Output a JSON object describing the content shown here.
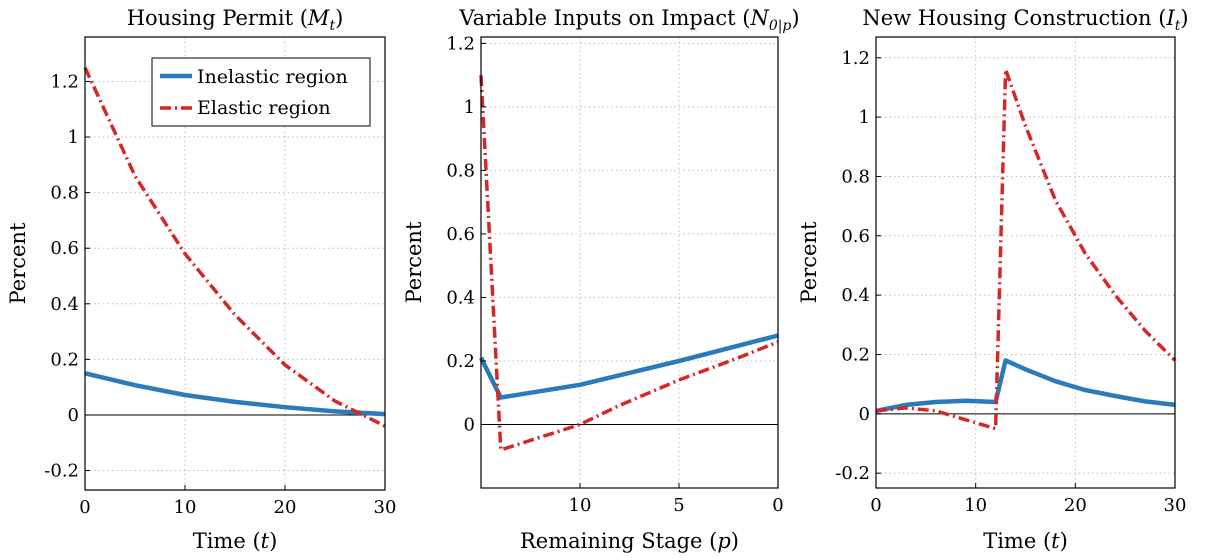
{
  "chart_data": [
    {
      "type": "line",
      "title": "Housing Permit (M_t)",
      "title_main": "Housing Permit (",
      "title_sym": "M",
      "title_sub": "t",
      "title_end": ")",
      "xlabel_main": "Time (",
      "xlabel_sym": "t",
      "xlabel_end": ")",
      "ylabel": "Percent",
      "xlim": [
        0,
        30
      ],
      "ylim": [
        -0.27,
        1.36
      ],
      "xticks": [
        0,
        10,
        20,
        30
      ],
      "xtick_labels": [
        "0",
        "10",
        "20",
        "30"
      ],
      "yticks": [
        -0.2,
        0,
        0.2,
        0.4,
        0.6,
        0.8,
        1,
        1.2
      ],
      "ytick_labels": [
        "-0.2",
        "0",
        "0.2",
        "0.4",
        "0.6",
        "0.8",
        "1",
        "1.2"
      ],
      "grid": true,
      "legend_position": "top-right",
      "series": [
        {
          "name": "Inelastic region",
          "color": "#2b7bba",
          "dash": "solid",
          "x": [
            0,
            5,
            10,
            15,
            20,
            25,
            30
          ],
          "y": [
            0.15,
            0.107,
            0.072,
            0.047,
            0.028,
            0.013,
            0.003
          ]
        },
        {
          "name": "Elastic region",
          "color": "#d62728",
          "dash": "dashdot",
          "x": [
            0,
            5,
            10,
            15,
            20,
            25,
            30
          ],
          "y": [
            1.25,
            0.86,
            0.58,
            0.36,
            0.18,
            0.05,
            -0.04
          ]
        }
      ]
    },
    {
      "type": "line",
      "title": "Variable Inputs on Impact (N_0|p)",
      "title_main": "Variable Inputs on Impact (",
      "title_sym": "N",
      "title_sub": "0|p",
      "title_end": ")",
      "xlabel_main": "Remaining Stage (",
      "xlabel_sym": "p",
      "xlabel_end": ")",
      "ylabel": "Percent",
      "xlim": [
        15,
        0
      ],
      "ylim": [
        -0.2,
        1.22
      ],
      "xticks": [
        10,
        5,
        0
      ],
      "xtick_labels": [
        "10",
        "5",
        "0"
      ],
      "yticks": [
        0,
        0.2,
        0.4,
        0.6,
        0.8,
        1,
        1.2
      ],
      "ytick_labels": [
        "0",
        "0.2",
        "0.4",
        "0.6",
        "0.8",
        "1",
        "1.2"
      ],
      "grid": true,
      "series": [
        {
          "name": "Inelastic region",
          "color": "#2b7bba",
          "dash": "solid",
          "x": [
            15,
            14,
            10,
            5,
            0
          ],
          "y": [
            0.21,
            0.085,
            0.125,
            0.2,
            0.28
          ]
        },
        {
          "name": "Elastic region",
          "color": "#d62728",
          "dash": "dashdot",
          "x": [
            15,
            14,
            12,
            10,
            8,
            5,
            2,
            0
          ],
          "y": [
            1.1,
            -0.08,
            -0.04,
            0.0,
            0.06,
            0.14,
            0.21,
            0.26
          ]
        }
      ]
    },
    {
      "type": "line",
      "title": "New Housing Construction (I_t)",
      "title_main": "New Housing Construction (",
      "title_sym": "I",
      "title_sub": "t",
      "title_end": ")",
      "xlabel_main": "Time (",
      "xlabel_sym": "t",
      "xlabel_end": ")",
      "ylabel": "Percent",
      "xlim": [
        0,
        30
      ],
      "ylim": [
        -0.25,
        1.27
      ],
      "xticks": [
        0,
        10,
        20,
        30
      ],
      "xtick_labels": [
        "0",
        "10",
        "20",
        "30"
      ],
      "yticks": [
        -0.2,
        0,
        0.2,
        0.4,
        0.6,
        0.8,
        1,
        1.2
      ],
      "ytick_labels": [
        "-0.2",
        "0",
        "0.2",
        "0.4",
        "0.6",
        "0.8",
        "1",
        "1.2"
      ],
      "grid": true,
      "series": [
        {
          "name": "Inelastic region",
          "color": "#2b7bba",
          "dash": "solid",
          "x": [
            0,
            3,
            6,
            9,
            12,
            13,
            15,
            18,
            21,
            24,
            27,
            30
          ],
          "y": [
            0.01,
            0.03,
            0.04,
            0.044,
            0.04,
            0.18,
            0.15,
            0.11,
            0.08,
            0.06,
            0.042,
            0.03
          ]
        },
        {
          "name": "Elastic region",
          "color": "#d62728",
          "dash": "dashdot",
          "x": [
            0,
            3,
            6,
            9,
            12,
            13,
            15,
            18,
            21,
            24,
            27,
            30
          ],
          "y": [
            0.01,
            0.02,
            0.01,
            -0.02,
            -0.05,
            1.16,
            0.97,
            0.72,
            0.54,
            0.4,
            0.28,
            0.18
          ]
        }
      ]
    }
  ]
}
